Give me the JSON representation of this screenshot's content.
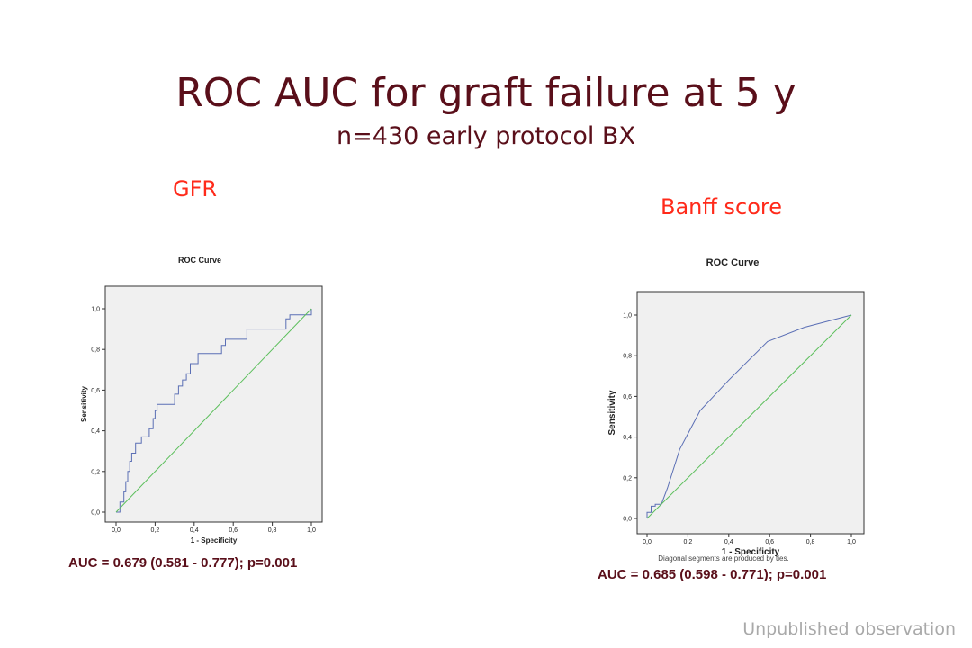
{
  "slide": {
    "title": "ROC AUC for graft failure at 5 y",
    "subtitle": "n=430 early protocol BX",
    "footer": "Unpublished observation"
  },
  "colors": {
    "title": "#5a0f1a",
    "panel_label": "#ff2a1a",
    "roc_line": "#5b6fb5",
    "reference_line": "#5cbf5c",
    "footer": "#a9a9a9"
  },
  "chart_data": [
    {
      "type": "line",
      "panel_label": "GFR",
      "title": "ROC Curve",
      "xlabel": "1 - Specificity",
      "ylabel": "Sensitivity",
      "xlim": [
        0,
        1
      ],
      "ylim": [
        0,
        1
      ],
      "x_ticks": [
        "0,0",
        "0,2",
        "0,4",
        "0,6",
        "0,8",
        "1,0"
      ],
      "y_ticks": [
        "0,0",
        "0,2",
        "0,4",
        "0,6",
        "0,8",
        "1,0"
      ],
      "grid": false,
      "series": [
        {
          "role": "roc",
          "x": [
            0.0,
            0.02,
            0.02,
            0.04,
            0.04,
            0.05,
            0.05,
            0.06,
            0.06,
            0.07,
            0.07,
            0.08,
            0.08,
            0.1,
            0.1,
            0.13,
            0.13,
            0.17,
            0.17,
            0.19,
            0.19,
            0.2,
            0.2,
            0.21,
            0.21,
            0.22,
            0.22,
            0.3,
            0.3,
            0.32,
            0.32,
            0.34,
            0.34,
            0.36,
            0.36,
            0.38,
            0.38,
            0.42,
            0.42,
            0.45,
            0.45,
            0.54,
            0.54,
            0.56,
            0.56,
            0.67,
            0.67,
            0.71,
            0.71,
            0.73,
            0.73,
            0.87,
            0.87,
            0.89,
            0.89,
            1.0,
            1.0
          ],
          "y": [
            0.0,
            0.0,
            0.05,
            0.05,
            0.1,
            0.1,
            0.15,
            0.15,
            0.2,
            0.2,
            0.25,
            0.25,
            0.29,
            0.29,
            0.34,
            0.34,
            0.37,
            0.37,
            0.41,
            0.41,
            0.46,
            0.46,
            0.5,
            0.5,
            0.53,
            0.53,
            0.53,
            0.53,
            0.58,
            0.58,
            0.62,
            0.62,
            0.65,
            0.65,
            0.68,
            0.68,
            0.73,
            0.73,
            0.78,
            0.78,
            0.78,
            0.78,
            0.82,
            0.82,
            0.85,
            0.85,
            0.9,
            0.9,
            0.9,
            0.9,
            0.9,
            0.9,
            0.95,
            0.95,
            0.97,
            0.97,
            1.0
          ]
        },
        {
          "role": "reference",
          "x": [
            0,
            1
          ],
          "y": [
            0,
            1
          ]
        }
      ],
      "annotation": "AUC = 0.679 (0.581 - 0.777); p=0.001"
    },
    {
      "type": "line",
      "panel_label": "Banff score",
      "title": "ROC Curve",
      "xlabel": "1 - Specificity",
      "ylabel": "Sensitivity",
      "xlim": [
        0,
        1
      ],
      "ylim": [
        0,
        1
      ],
      "x_ticks": [
        "0,0",
        "0,2",
        "0,4",
        "0,6",
        "0,8",
        "1,0"
      ],
      "y_ticks": [
        "0,0",
        "0,2",
        "0,4",
        "0,6",
        "0,8",
        "1,0"
      ],
      "grid": false,
      "series": [
        {
          "role": "roc",
          "x": [
            0.0,
            0.0,
            0.02,
            0.02,
            0.04,
            0.04,
            0.07,
            0.1,
            0.16,
            0.26,
            0.4,
            0.59,
            0.77,
            1.0
          ],
          "y": [
            0.0,
            0.03,
            0.03,
            0.06,
            0.06,
            0.07,
            0.07,
            0.15,
            0.34,
            0.53,
            0.68,
            0.87,
            0.94,
            1.0
          ]
        },
        {
          "role": "reference",
          "x": [
            0,
            1
          ],
          "y": [
            0,
            1
          ]
        }
      ],
      "annotation": "AUC = 0.685 (0.598 - 0.771); p=0.001",
      "footnote": "Diagonal segments are produced by ties."
    }
  ]
}
